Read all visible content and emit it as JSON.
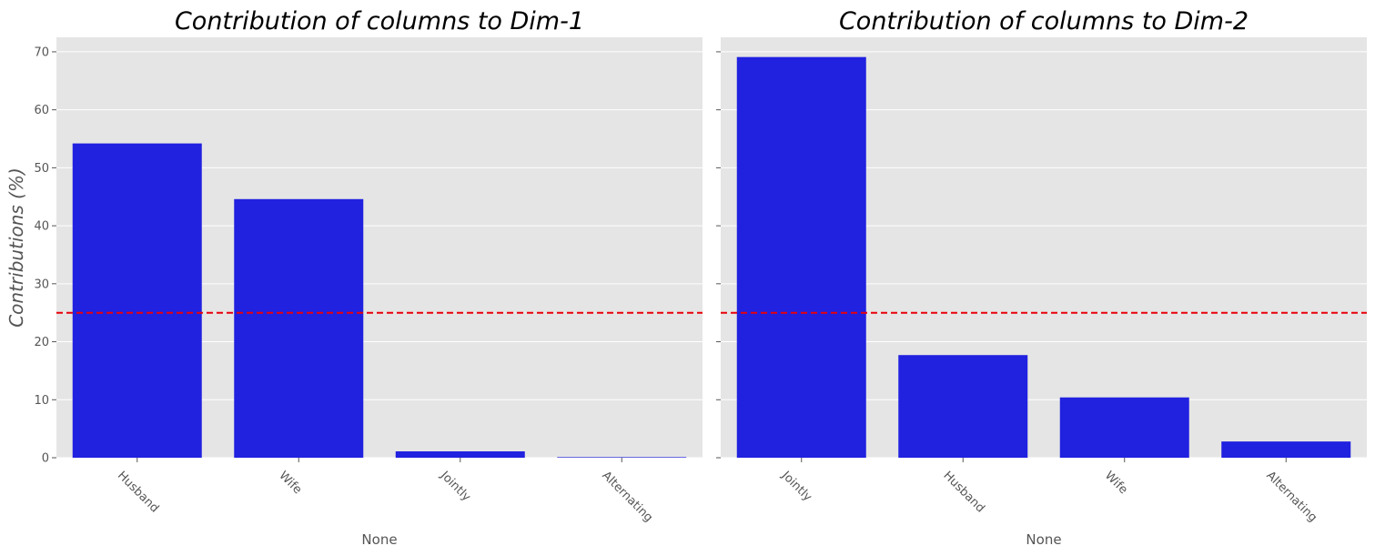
{
  "chart_data": [
    {
      "type": "bar",
      "title": "Contribution of columns to Dim-1",
      "xlabel": "None",
      "ylabel": "Contributions (%)",
      "categories": [
        "Husband",
        "Wife",
        "Jointly",
        "Alternating"
      ],
      "values": [
        54.2,
        44.6,
        1.1,
        0.1
      ],
      "ylim": [
        0,
        72.5
      ],
      "yticks": [
        0,
        10,
        20,
        30,
        40,
        50,
        60,
        70
      ],
      "reference_line": 25,
      "bar_color": "#2121e0",
      "reference_color": "#e8000b",
      "background": "#e5e5e5",
      "grid": true
    },
    {
      "type": "bar",
      "title": "Contribution of columns to Dim-2",
      "xlabel": "None",
      "ylabel": "",
      "categories": [
        "Jointly",
        "Husband",
        "Wife",
        "Alternating"
      ],
      "values": [
        69.1,
        17.7,
        10.4,
        2.8
      ],
      "ylim": [
        0,
        72.5
      ],
      "yticks": [
        0,
        10,
        20,
        30,
        40,
        50,
        60,
        70
      ],
      "reference_line": 25,
      "bar_color": "#2121e0",
      "reference_color": "#e8000b",
      "background": "#e5e5e5",
      "grid": true
    }
  ]
}
